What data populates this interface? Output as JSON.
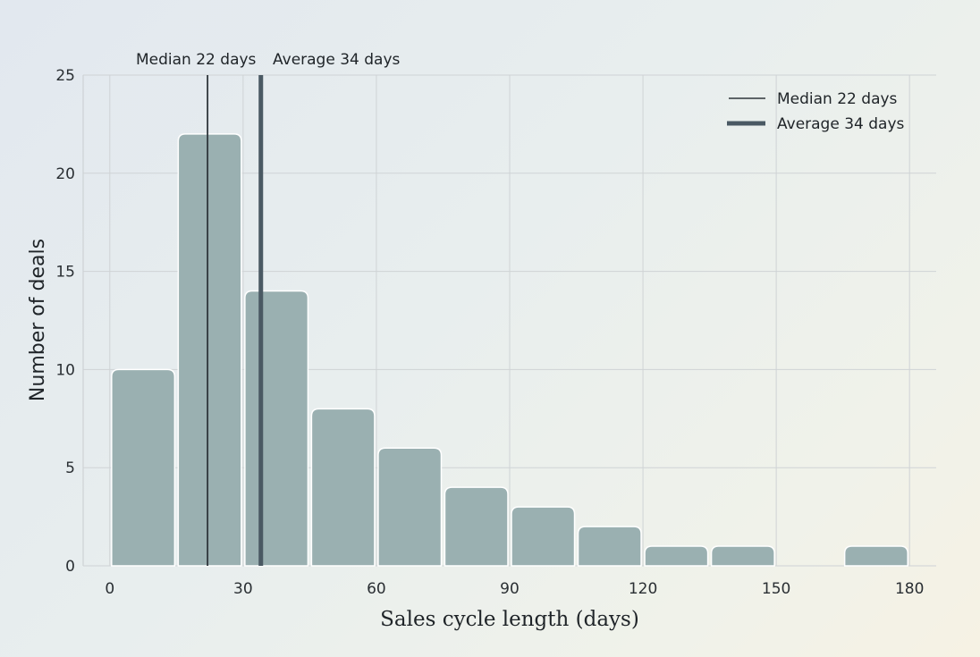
{
  "chart_data": {
    "type": "bar",
    "title": "",
    "xlabel": "Sales cycle length (days)",
    "ylabel": "Number of deals",
    "bins": [
      [
        0,
        15
      ],
      [
        15,
        30
      ],
      [
        30,
        45
      ],
      [
        45,
        60
      ],
      [
        60,
        75
      ],
      [
        75,
        90
      ],
      [
        90,
        105
      ],
      [
        105,
        120
      ],
      [
        120,
        135
      ],
      [
        135,
        150
      ],
      [
        150,
        165
      ],
      [
        165,
        180
      ]
    ],
    "values": [
      10,
      22,
      14,
      8,
      6,
      4,
      3,
      2,
      1,
      1,
      0,
      1
    ],
    "xlim": [
      -6,
      186
    ],
    "ylim": [
      0,
      25
    ],
    "xticks": [
      0,
      30,
      60,
      90,
      120,
      150,
      180
    ],
    "yticks": [
      0,
      5,
      10,
      15,
      20,
      25
    ],
    "grid": true,
    "bar_color": "#9ab0b1",
    "reference_lines": [
      {
        "name": "Median 22 days",
        "x": 22,
        "color": "#2f363b",
        "style": "thin"
      },
      {
        "name": "Average 34 days",
        "x": 34,
        "color": "#4a5963",
        "style": "thick"
      }
    ],
    "annotations": [
      "Median 22 days",
      "Average 34 days"
    ],
    "legend": {
      "placement": "top-right",
      "entries": [
        "Median 22 days",
        "Average 34 days"
      ]
    }
  }
}
